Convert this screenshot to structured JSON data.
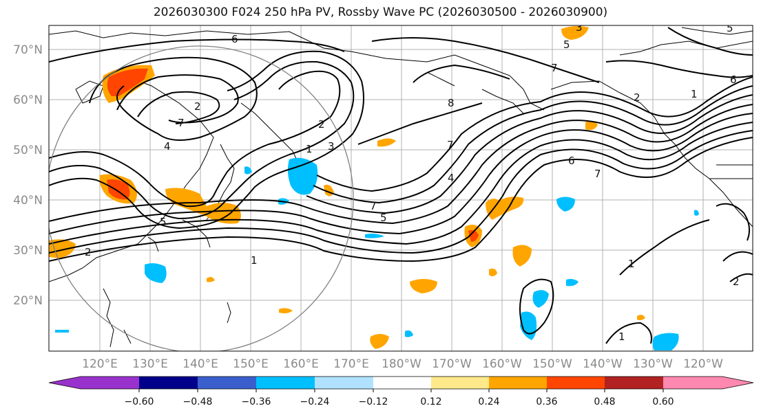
{
  "title": "2026030300 F024 250 hPa PV, Rossby Wave PC (2026030500 - 2026030900)",
  "lat_labels": [
    "70°N",
    "60°N",
    "50°N",
    "40°N",
    "30°N",
    "20°N"
  ],
  "lon_labels": [
    "120°E",
    "130°E",
    "140°E",
    "150°E",
    "160°E",
    "170°E",
    "180°W",
    "170°W",
    "160°W",
    "150°W",
    "140°W",
    "130°W",
    "120°W"
  ],
  "colorbar": {
    "ticks": [
      "−0.60",
      "−0.48",
      "−0.36",
      "−0.24",
      "−0.12",
      "0.12",
      "0.24",
      "0.36",
      "0.48",
      "0.60"
    ],
    "colors": [
      "#9932cc",
      "#00008b",
      "#3a5fcd",
      "#00bfff",
      "#b0e2ff",
      "#ffffff",
      "#ffe98a",
      "#ffa500",
      "#ff4500",
      "#b22222",
      "#ff88b0"
    ]
  },
  "contour_labels": [
    "6",
    "5",
    "7",
    "8",
    "2",
    "1",
    "6",
    "2",
    "7",
    "4",
    "3",
    "1",
    "7",
    "5",
    "2",
    "5",
    "2",
    "1",
    "4",
    "7",
    "6",
    "1",
    "1",
    "2",
    "7",
    "5",
    "3"
  ]
}
